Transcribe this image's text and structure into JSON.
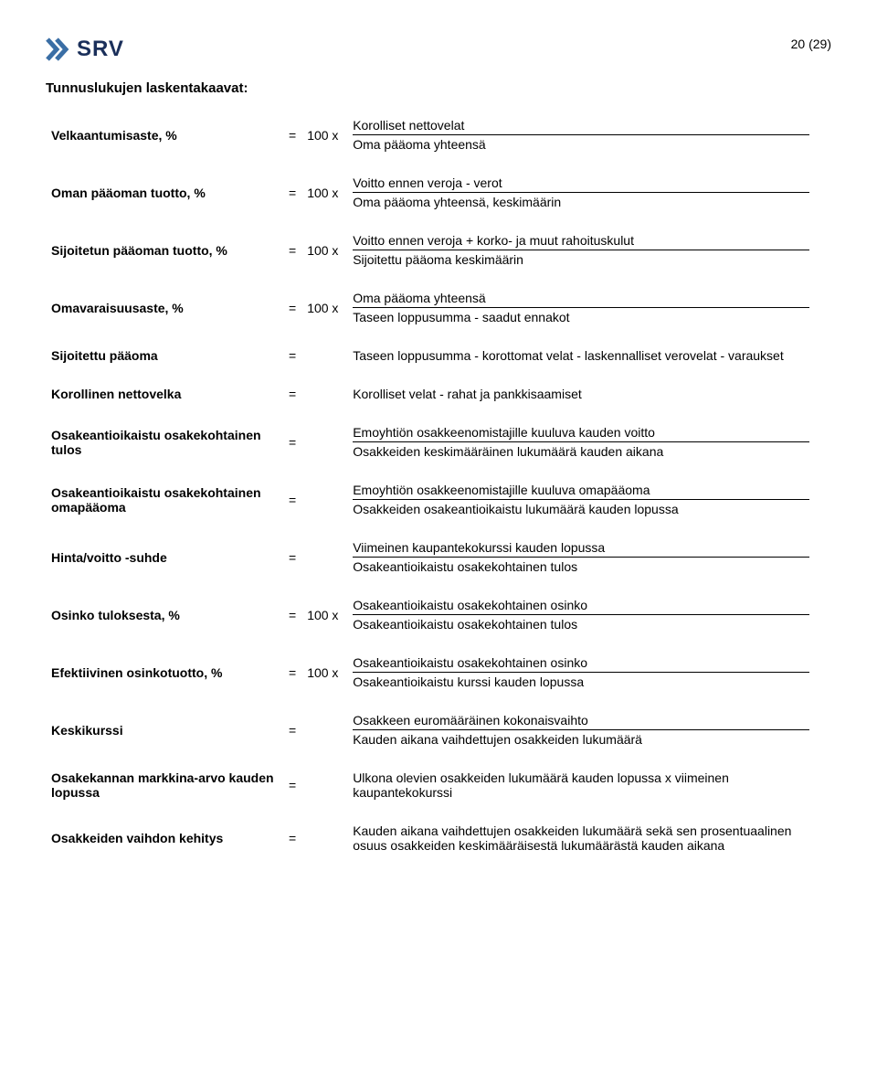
{
  "page_number": "20 (29)",
  "logo_text": "SRV",
  "logo_color": "#1a2f5a",
  "chevron_color": "#3a6ea5",
  "title": "Tunnuslukujen laskentakaavat:",
  "rows": [
    {
      "label": "Velkaantumisaste, %",
      "mult": "100 x",
      "num": "Korolliset nettovelat",
      "den": "Oma pääoma yhteensä"
    },
    {
      "label": "Oman pääoman tuotto, %",
      "mult": "100 x",
      "num": "Voitto ennen veroja - verot",
      "den": "Oma pääoma yhteensä, keskimäärin"
    },
    {
      "label": "Sijoitetun pääoman tuotto, %",
      "mult": "100 x",
      "num": "Voitto ennen veroja + korko- ja muut rahoituskulut",
      "den": "Sijoitettu pääoma keskimäärin"
    },
    {
      "label": "Omavaraisuusaste, %",
      "mult": "100 x",
      "num": "Oma pääoma yhteensä",
      "den": "Taseen loppusumma - saadut ennakot"
    },
    {
      "label": "Sijoitettu pääoma",
      "mult": "",
      "single": "Taseen loppusumma - korottomat velat - laskennalliset verovelat - varaukset"
    },
    {
      "label": "Korollinen nettovelka",
      "mult": "",
      "single": "Korolliset velat - rahat ja pankkisaamiset"
    },
    {
      "label": "Osakeantioikaistu osakekohtainen tulos",
      "mult": "",
      "num": "Emoyhtiön osakkeenomistajille kuuluva kauden voitto",
      "den": "Osakkeiden keskimääräinen lukumäärä kauden aikana"
    },
    {
      "label": "Osakeantioikaistu osakekohtainen omapääoma",
      "mult": "",
      "num": "Emoyhtiön osakkeenomistajille kuuluva omapääoma",
      "den": "Osakkeiden osakeantioikaistu lukumäärä kauden lopussa"
    },
    {
      "label": "Hinta/voitto -suhde",
      "mult": "",
      "num": "Viimeinen kaupantekokurssi kauden lopussa",
      "den": "Osakeantioikaistu osakekohtainen tulos"
    },
    {
      "label": "Osinko tuloksesta, %",
      "mult": "100 x",
      "num": "Osakeantioikaistu osakekohtainen osinko",
      "den": "Osakeantioikaistu osakekohtainen tulos"
    },
    {
      "label": "Efektiivinen osinkotuotto, %",
      "mult": "100 x",
      "num": "Osakeantioikaistu osakekohtainen osinko",
      "den": "Osakeantioikaistu kurssi kauden lopussa"
    },
    {
      "label": "Keskikurssi",
      "mult": "",
      "num": "Osakkeen euromääräinen kokonaisvaihto",
      "den": "Kauden aikana vaihdettujen osakkeiden lukumäärä"
    },
    {
      "label": "Osakekannan markkina-arvo kauden lopussa",
      "mult": "",
      "single": "Ulkona olevien osakkeiden lukumäärä kauden lopussa x viimeinen kaupantekokurssi"
    },
    {
      "label": "Osakkeiden vaihdon kehitys",
      "mult": "",
      "single": "Kauden aikana vaihdettujen osakkeiden lukumäärä sekä sen prosentuaalinen osuus osakkeiden keskimääräisestä lukumäärästä kauden aikana"
    }
  ]
}
